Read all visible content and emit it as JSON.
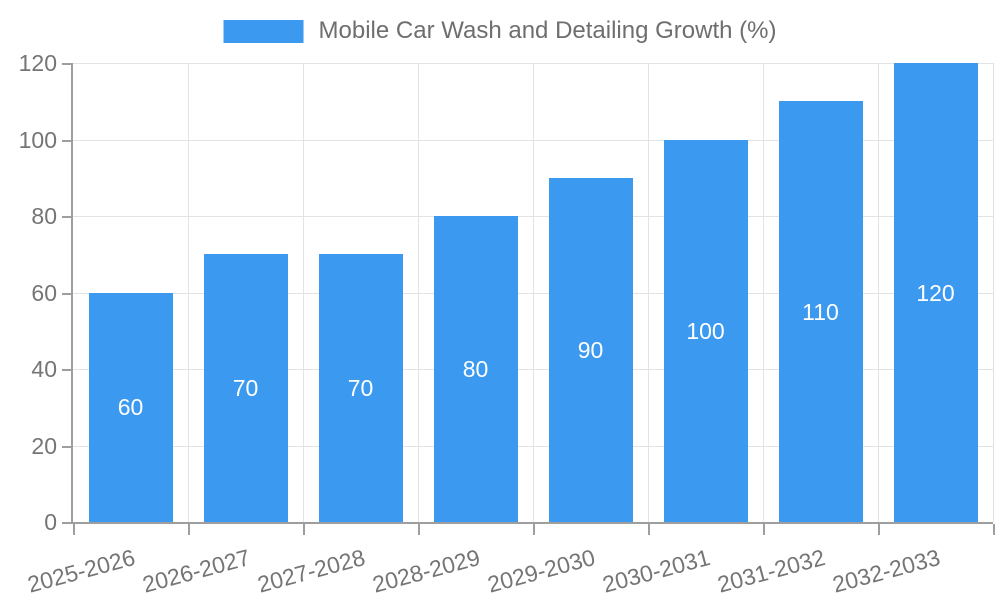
{
  "chart_data": {
    "type": "bar",
    "title": "Mobile Car Wash and Detailing Growth (%)",
    "categories": [
      "2025-2026",
      "2026-2027",
      "2027-2028",
      "2028-2029",
      "2029-2030",
      "2030-2031",
      "2031-2032",
      "2032-2033"
    ],
    "values": [
      60,
      70,
      70,
      80,
      90,
      100,
      110,
      120
    ],
    "xlabel": "",
    "ylabel": "",
    "ylim": [
      0,
      120
    ],
    "ytick_step": 20,
    "ytick_labels": [
      "0",
      "20",
      "40",
      "60",
      "80",
      "100",
      "120"
    ],
    "grid": true,
    "legend_position": "top-center",
    "value_labels_position": "inside-center",
    "colors": {
      "bar": "#3b99f0",
      "bar_value_text": "#ffffff",
      "title_text": "#6e6e6e",
      "axis_text": "#757575",
      "grid_line": "#e3e3e3",
      "axis_line": "#9e9e9e",
      "background": "#ffffff"
    }
  }
}
